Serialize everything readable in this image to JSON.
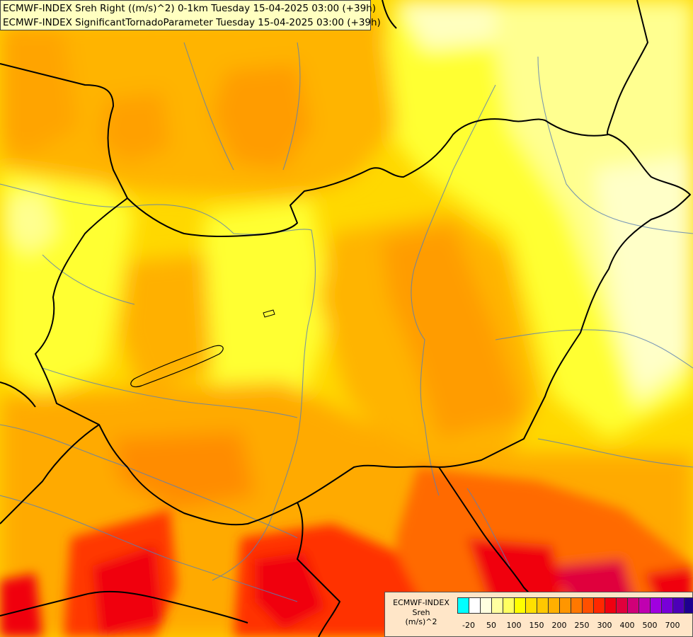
{
  "title": {
    "line1": "ECMWF-INDEX Sreh Right ((m/s)^2) 0-1km Tuesday 15-04-2025 03:00 (+39h)",
    "line2": "ECMWF-INDEX SignificantTornadoParameter Tuesday 15-04-2025 03:00 (+39h)"
  },
  "legend": {
    "title_line1": "ECMWF-INDEX",
    "title_line2": "Sreh",
    "title_line3": "(m/s)^2",
    "swatch_colors": [
      "#00ffff",
      "#ffffff",
      "#ffffe0",
      "#ffffa0",
      "#ffff60",
      "#ffff00",
      "#ffe000",
      "#ffc800",
      "#ffb000",
      "#ff9600",
      "#ff7800",
      "#ff5000",
      "#ff2800",
      "#f00010",
      "#e0003c",
      "#d00078",
      "#c000b0",
      "#a000e0",
      "#7800d8",
      "#4c00b8",
      "#1e0090"
    ],
    "tick_labels": [
      "-20",
      "50",
      "100",
      "150",
      "200",
      "250",
      "300",
      "400",
      "500",
      "700"
    ]
  }
}
